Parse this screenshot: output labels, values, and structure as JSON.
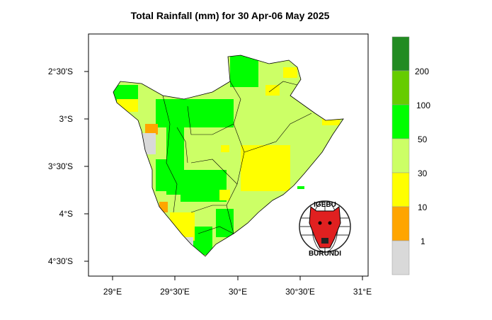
{
  "title": "Total Rainfall (mm) for 30 Apr-06 May 2025",
  "x_ticks": [
    "29°E",
    "29°30'E",
    "30°E",
    "30°30'E",
    "31°E"
  ],
  "y_ticks": [
    "2°30'S",
    "3°S",
    "3°30'S",
    "4°S",
    "4°30'S"
  ],
  "legend": {
    "colors": [
      "#228b22",
      "#66cc00",
      "#00ff00",
      "#ccff66",
      "#ffff00",
      "#ffa500",
      "#d9d9d9"
    ],
    "labels": [
      "200",
      "100",
      "50",
      "30",
      "10",
      "1"
    ]
  },
  "logo": {
    "top_text": "IGEBU",
    "bottom_text": "BURUNDI"
  }
}
